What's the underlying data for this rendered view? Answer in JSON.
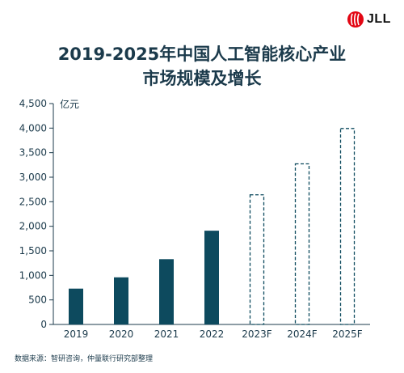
{
  "logo": {
    "text": "JLL",
    "mark_color": "#e30613"
  },
  "title_lines": [
    "2019-2025年中国人工智能核心产业",
    "市场规模及增长"
  ],
  "source": "数据来源：智研咨询，仲量联行研究部整理",
  "colors": {
    "bar": "#0d4a5e",
    "text": "#1b3a4b",
    "axis": "#1b3a4b"
  },
  "chart_data": {
    "type": "bar",
    "unit_label": "亿元",
    "categories": [
      "2019",
      "2020",
      "2021",
      "2022",
      "2023F",
      "2024F",
      "2025F"
    ],
    "values": [
      730,
      960,
      1330,
      1910,
      2650,
      3280,
      4000
    ],
    "forecast": [
      false,
      false,
      false,
      false,
      true,
      true,
      true
    ],
    "ylim": [
      0,
      4500
    ],
    "yticks": [
      0,
      500,
      1000,
      1500,
      2000,
      2500,
      3000,
      3500,
      4000,
      4500
    ],
    "ytick_labels": [
      "0",
      "500",
      "1,000",
      "1,500",
      "2,000",
      "2,500",
      "3,000",
      "3,500",
      "4,000",
      "4,500"
    ],
    "grid": false
  }
}
